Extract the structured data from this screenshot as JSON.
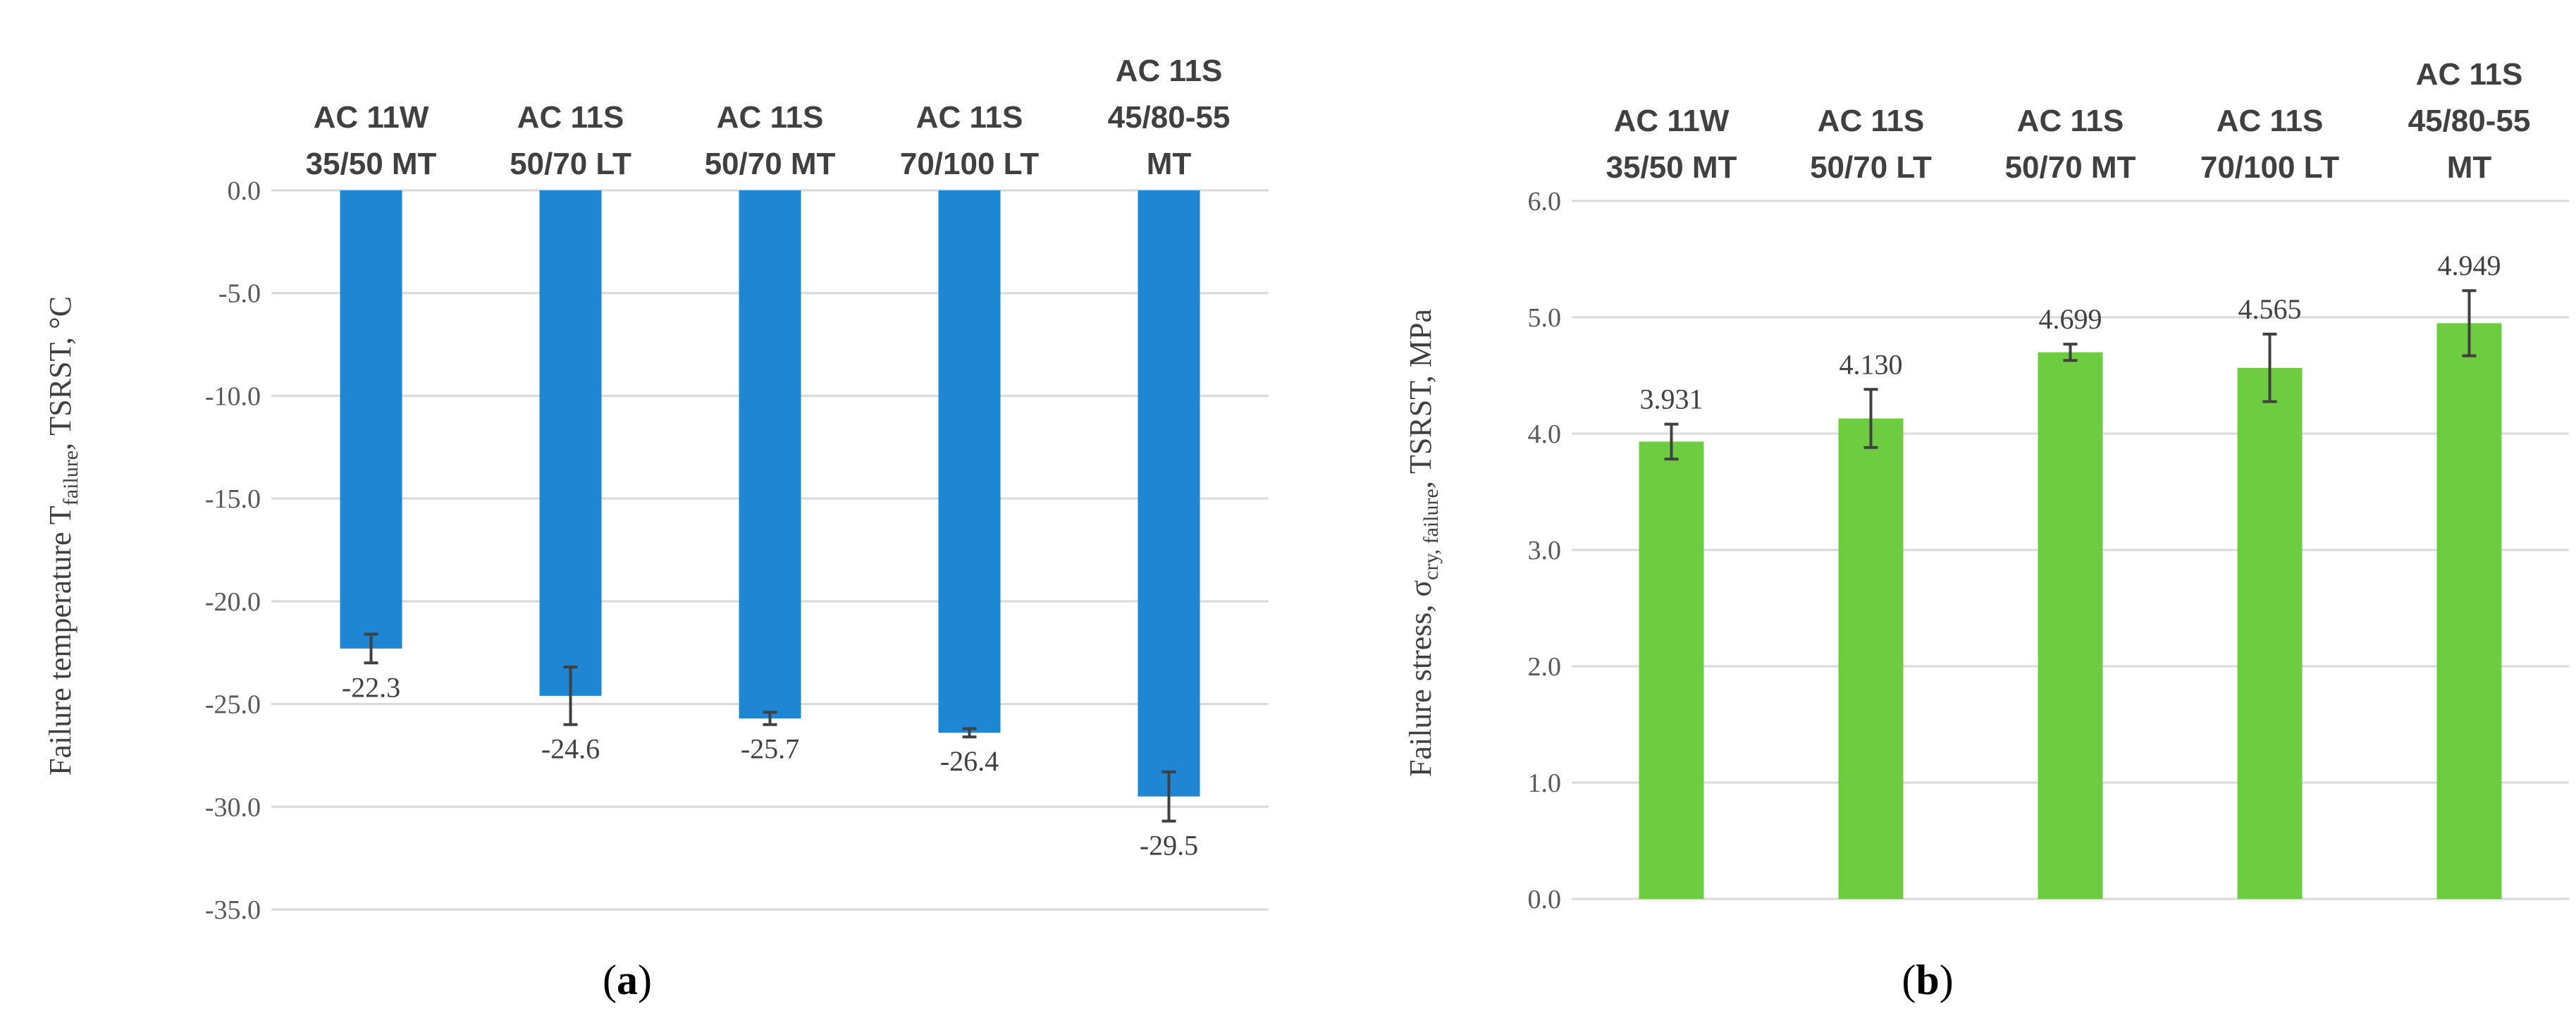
{
  "chart_data": [
    {
      "type": "bar",
      "panel_label": "a",
      "categories": [
        [
          "AC 11W",
          "35/50 MT"
        ],
        [
          "AC 11S",
          "50/70    LT"
        ],
        [
          "AC 11S",
          "50/70 MT"
        ],
        [
          "AC 11S",
          "70/100 LT"
        ],
        [
          "AC 11S",
          "45/80-55",
          "MT"
        ]
      ],
      "values": [
        -22.3,
        -24.6,
        -25.7,
        -26.4,
        -29.5
      ],
      "value_labels": [
        "-22.3",
        "-24.6",
        "-25.7",
        "-26.4",
        "-29.5"
      ],
      "error_bars": [
        0.7,
        1.4,
        0.3,
        0.2,
        1.2
      ],
      "ylabel": {
        "main": "Failure temperature T",
        "sub": "failure",
        "rest": ", TSRST, °C"
      },
      "ylim": [
        -35,
        0
      ],
      "yticks": [
        "0.0",
        "-5.0",
        "-10.0",
        "-15.0",
        "-20.0",
        "-25.0",
        "-30.0",
        "-35.0"
      ],
      "ytick_values": [
        0,
        -5,
        -10,
        -15,
        -20,
        -25,
        -30,
        -35
      ],
      "color": "#1f86d4",
      "grid": true,
      "category_axis_position": "top"
    },
    {
      "type": "bar",
      "panel_label": "b",
      "categories": [
        [
          "AC 11W",
          "35/50 MT"
        ],
        [
          "AC 11S",
          "50/70    LT"
        ],
        [
          "AC 11S",
          "50/70 MT"
        ],
        [
          "AC 11S",
          "70/100 LT"
        ],
        [
          "AC 11S",
          "45/80-55",
          "MT"
        ]
      ],
      "values": [
        3.931,
        4.13,
        4.699,
        4.565,
        4.949
      ],
      "value_labels": [
        "3.931",
        "4.130",
        "4.699",
        "4.565",
        "4.949"
      ],
      "error_bars": [
        0.15,
        0.25,
        0.07,
        0.29,
        0.28
      ],
      "ylabel": {
        "main": "Failure stress, σ",
        "sub": "cry, failure",
        "rest": ", TSRST, MPa"
      },
      "ylim": [
        0,
        6
      ],
      "yticks": [
        "6.0",
        "5.0",
        "4.0",
        "3.0",
        "2.0",
        "1.0",
        "0.0"
      ],
      "ytick_values": [
        6,
        5,
        4,
        3,
        2,
        1,
        0
      ],
      "color": "#6dcc3f",
      "grid": true,
      "category_axis_position": "top"
    }
  ]
}
